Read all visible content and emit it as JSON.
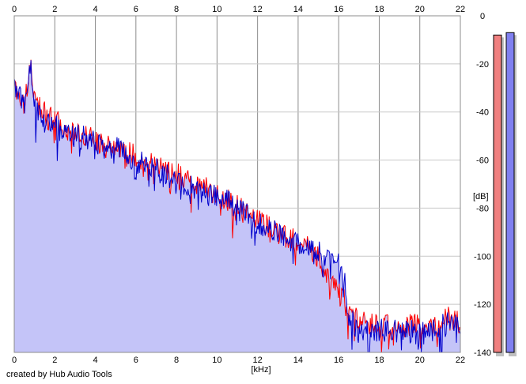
{
  "credit": "created by Hub Audio Tools",
  "colors": {
    "background": "#ffffff",
    "grid": "#c8c8c8",
    "grid_major": "#8c8c8c",
    "fill": "#c4c4f8",
    "left_channel": "#ff0000",
    "right_channel": "#0000cc",
    "meter_left": "#f08080",
    "meter_right": "#8080f0"
  },
  "chart_data": {
    "type": "line",
    "title": "",
    "xlabel": "[kHz]",
    "ylabel": "[dB]",
    "xlim": [
      0,
      22
    ],
    "ylim": [
      -140,
      0
    ],
    "x_ticks": [
      "0",
      "2",
      "4",
      "6",
      "8",
      "10",
      "12",
      "14",
      "16",
      "18",
      "20",
      "22"
    ],
    "y_ticks": [
      "0",
      "-20",
      "-40",
      "-60",
      "-80",
      "-100",
      "-120",
      "-140"
    ],
    "grid": true,
    "x": [
      0,
      0.5,
      0.8,
      1,
      1.5,
      2,
      2.5,
      3,
      3.5,
      4,
      4.5,
      5,
      5.5,
      6,
      6.5,
      7,
      7.5,
      8,
      8.5,
      9,
      9.5,
      10,
      10.5,
      11,
      11.5,
      12,
      12.5,
      13,
      13.5,
      14,
      14.5,
      15,
      15.5,
      16,
      16.3,
      16.5,
      17,
      18,
      19,
      20,
      21,
      21.5,
      22
    ],
    "series": [
      {
        "values": [
          -30,
          -36,
          -20,
          -36,
          -40,
          -44,
          -46,
          -50,
          -50,
          -52,
          -53,
          -54,
          -56,
          -58,
          -60,
          -62,
          -64,
          -66,
          -68,
          -70,
          -72,
          -74,
          -76,
          -79,
          -82,
          -84,
          -87,
          -90,
          -92,
          -94,
          -96,
          -100,
          -110,
          -116,
          -119,
          -124,
          -127,
          -129,
          -129,
          -129,
          -128,
          -124,
          -128
        ]
      },
      {
        "values": [
          -30,
          -38,
          -19,
          -38,
          -42,
          -46,
          -48,
          -50,
          -50,
          -53,
          -54,
          -55,
          -58,
          -60,
          -62,
          -64,
          -66,
          -68,
          -70,
          -72,
          -74,
          -75,
          -77,
          -80,
          -83,
          -86,
          -88,
          -91,
          -93,
          -95,
          -96,
          -98,
          -100,
          -100,
          -110,
          -126,
          -130,
          -131,
          -131,
          -131,
          -130,
          -126,
          -130
        ]
      }
    ],
    "level_meters": [
      {
        "value_db": -8
      },
      {
        "value_db": -7
      }
    ]
  }
}
